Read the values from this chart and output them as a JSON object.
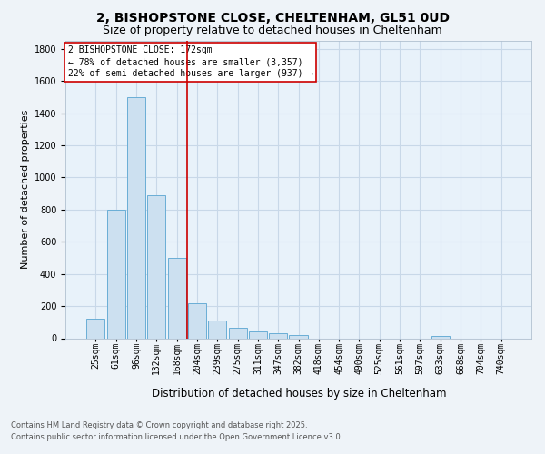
{
  "title_line1": "2, BISHOPSTONE CLOSE, CHELTENHAM, GL51 0UD",
  "title_line2": "Size of property relative to detached houses in Cheltenham",
  "xlabel": "Distribution of detached houses by size in Cheltenham",
  "ylabel": "Number of detached properties",
  "footer_line1": "Contains HM Land Registry data © Crown copyright and database right 2025.",
  "footer_line2": "Contains public sector information licensed under the Open Government Licence v3.0.",
  "bar_labels": [
    "25sqm",
    "61sqm",
    "96sqm",
    "132sqm",
    "168sqm",
    "204sqm",
    "239sqm",
    "275sqm",
    "311sqm",
    "347sqm",
    "382sqm",
    "418sqm",
    "454sqm",
    "490sqm",
    "525sqm",
    "561sqm",
    "597sqm",
    "633sqm",
    "668sqm",
    "704sqm",
    "740sqm"
  ],
  "bar_values": [
    120,
    800,
    1500,
    890,
    500,
    215,
    110,
    65,
    45,
    30,
    20,
    0,
    0,
    0,
    0,
    0,
    0,
    15,
    0,
    0,
    0
  ],
  "bar_color": "#cce0f0",
  "bar_edge_color": "#6aaed6",
  "grid_color": "#c8d8e8",
  "annotation_text": "2 BISHOPSTONE CLOSE: 172sqm\n← 78% of detached houses are smaller (3,357)\n22% of semi-detached houses are larger (937) →",
  "vline_position": 4.5,
  "vline_color": "#cc0000",
  "annotation_box_edge": "#cc0000",
  "ylim": [
    0,
    1850
  ],
  "yticks": [
    0,
    200,
    400,
    600,
    800,
    1000,
    1200,
    1400,
    1600,
    1800
  ],
  "background_color": "#eef3f8",
  "plot_bg_color": "#e8f2fa",
  "title1_fontsize": 10,
  "title2_fontsize": 9,
  "ylabel_fontsize": 8,
  "xlabel_fontsize": 8.5,
  "tick_fontsize": 7,
  "annotation_fontsize": 7,
  "footer_fontsize": 6
}
